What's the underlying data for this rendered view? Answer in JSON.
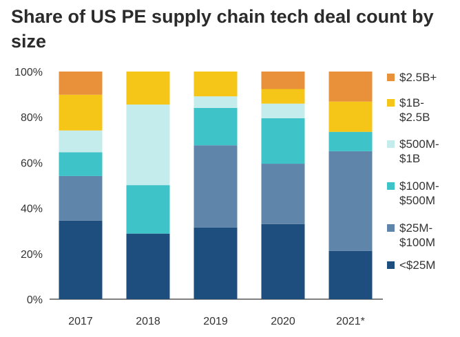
{
  "title": "Share of US PE supply chain tech deal count by size",
  "chart_data": {
    "type": "bar",
    "stacked": true,
    "categories": [
      "2017",
      "2018",
      "2019",
      "2020",
      "2021*"
    ],
    "ylim": [
      0,
      100
    ],
    "yticks": [
      "0%",
      "20%",
      "40%",
      "60%",
      "80%",
      "100%"
    ],
    "series": [
      {
        "name": "<$25M",
        "color": "#1e4e7e",
        "values": [
          34.5,
          28.8,
          31.5,
          33.0,
          21.2
        ]
      },
      {
        "name": "$25M-\n$100M",
        "color": "#5f85aa",
        "values": [
          19.6,
          0,
          36.1,
          26.5,
          43.8
        ]
      },
      {
        "name": "$100M-\n$500M",
        "color": "#3ec3c9",
        "values": [
          10.4,
          21.3,
          16.4,
          20.0,
          8.5
        ]
      },
      {
        "name": "$500M-\n$1B",
        "color": "#c5ecec",
        "values": [
          9.6,
          35.4,
          5.1,
          6.4,
          0
        ]
      },
      {
        "name": "$1B-\n$2.5B",
        "color": "#f5c518",
        "values": [
          15.7,
          14.5,
          10.9,
          6.4,
          13.3
        ]
      },
      {
        "name": "$2.5B+",
        "color": "#e8913a",
        "values": [
          10.2,
          0,
          0,
          7.7,
          13.2
        ]
      }
    ],
    "legend_position": "right",
    "grid": false
  }
}
